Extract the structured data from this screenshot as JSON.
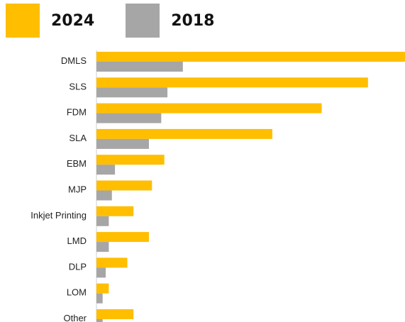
{
  "legend": {
    "items": [
      {
        "label": "2024",
        "color": "#FFBE00"
      },
      {
        "label": "2018",
        "color": "#A6A6A6"
      }
    ]
  },
  "chart_data": {
    "type": "bar",
    "orientation": "horizontal",
    "categories": [
      "DMLS",
      "SLS",
      "FDM",
      "SLA",
      "EBM",
      "MJP",
      "Inkjet Printing",
      "LMD",
      "DLP",
      "LOM",
      "Other"
    ],
    "series": [
      {
        "name": "2024",
        "color": "#FFBE00",
        "values": [
          100,
          88,
          73,
          57,
          22,
          18,
          12,
          17,
          10,
          4,
          12
        ]
      },
      {
        "name": "2018",
        "color": "#A6A6A6",
        "values": [
          28,
          23,
          21,
          17,
          6,
          5,
          4,
          4,
          3,
          2,
          2
        ]
      }
    ],
    "xlim": [
      0,
      100
    ],
    "grid": false,
    "legend_position": "top-left",
    "title": "",
    "xlabel": "",
    "ylabel": ""
  }
}
